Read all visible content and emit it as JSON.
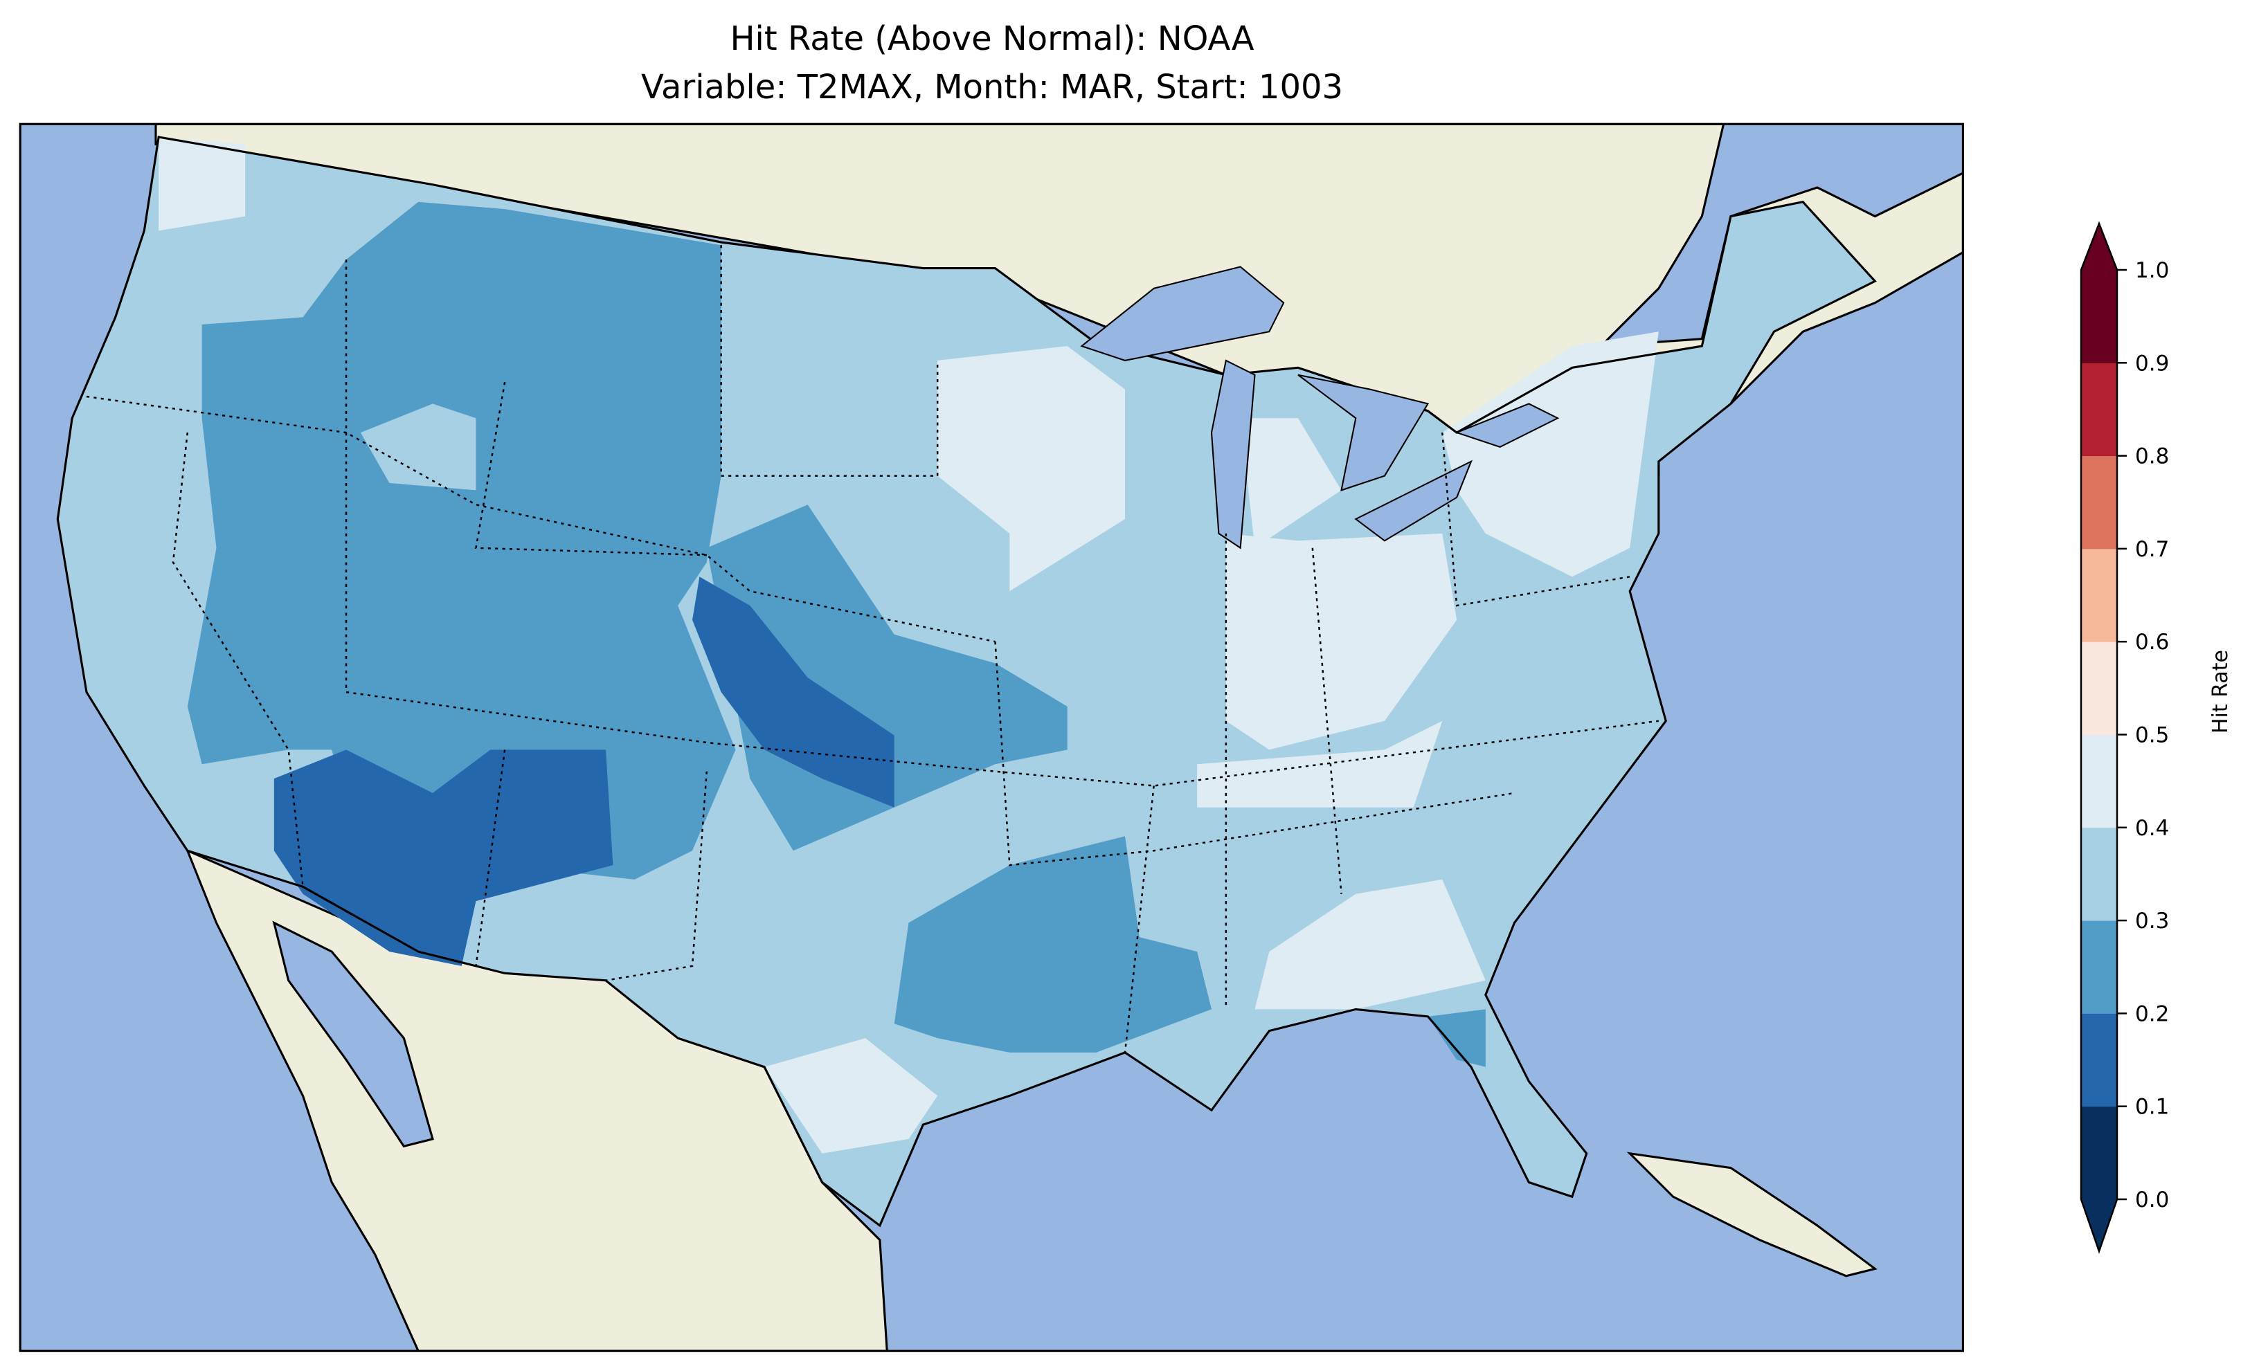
{
  "title": {
    "line1": "Hit Rate (Above Normal): NOAA",
    "line2": "Variable: T2MAX, Month: MAR, Start: 1003"
  },
  "map": {
    "colors": {
      "ocean": "#97b6e1",
      "land": "#efeedc",
      "lakes": "#97b6e1"
    }
  },
  "colorbar": {
    "label": "Hit Rate",
    "ticks": [
      "0.0",
      "0.1",
      "0.2",
      "0.3",
      "0.4",
      "0.5",
      "0.6",
      "0.7",
      "0.8",
      "0.9",
      "1.0"
    ],
    "range": [
      0.0,
      1.0
    ],
    "extend": "both",
    "bins": [
      {
        "from": 0.0,
        "to": 0.1,
        "color": "#08305e"
      },
      {
        "from": 0.1,
        "to": 0.2,
        "color": "#2467ad"
      },
      {
        "from": 0.2,
        "to": 0.3,
        "color": "#529cc8"
      },
      {
        "from": 0.3,
        "to": 0.4,
        "color": "#a8d0e4"
      },
      {
        "from": 0.4,
        "to": 0.5,
        "color": "#e0ecf3"
      },
      {
        "from": 0.5,
        "to": 0.6,
        "color": "#fae7de"
      },
      {
        "from": 0.6,
        "to": 0.7,
        "color": "#f6b99a"
      },
      {
        "from": 0.7,
        "to": 0.8,
        "color": "#de735d"
      },
      {
        "from": 0.8,
        "to": 0.9,
        "color": "#b3202f"
      },
      {
        "from": 0.9,
        "to": 1.0,
        "color": "#67001f"
      }
    ]
  }
}
